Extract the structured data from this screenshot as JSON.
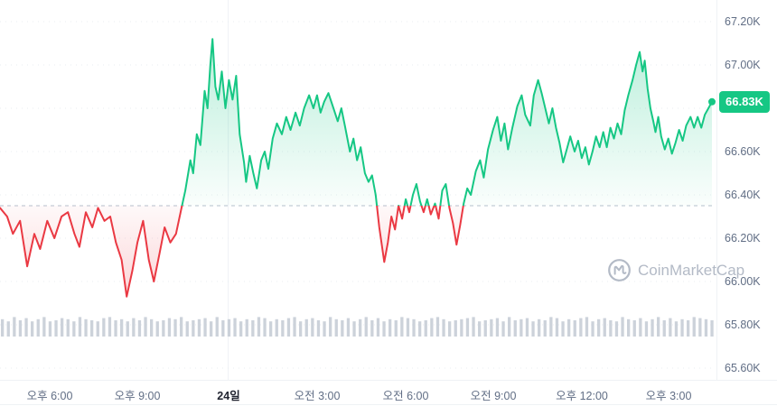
{
  "watermark": {
    "text": "CoinMarketCap"
  },
  "chart_data": {
    "type": "line",
    "current": 66.83,
    "current_label": "66.83K",
    "baseline": 66.35,
    "ylim": [
      65.55,
      67.3
    ],
    "grid": true,
    "yticks": [
      67.2,
      67.0,
      66.8,
      66.6,
      66.4,
      66.2,
      66.0,
      65.8,
      65.6
    ],
    "ytick_labels": [
      "67.20K",
      "67.00K",
      "66.80K",
      "66.60K",
      "66.40K",
      "66.20K",
      "66.00K",
      "65.80K",
      "65.60K"
    ],
    "xticks": [
      {
        "f": 0.07,
        "label": "오후 6:00",
        "bold": false
      },
      {
        "f": 0.192,
        "label": "오후 9:00",
        "bold": false
      },
      {
        "f": 0.319,
        "label": "24일",
        "bold": true
      },
      {
        "f": 0.443,
        "label": "오전 3:00",
        "bold": false
      },
      {
        "f": 0.567,
        "label": "오전 6:00",
        "bold": false
      },
      {
        "f": 0.69,
        "label": "오전 9:00",
        "bold": false
      },
      {
        "f": 0.813,
        "label": "오후 12:00",
        "bold": false
      },
      {
        "f": 0.934,
        "label": "오후 3:00",
        "bold": false
      }
    ],
    "colors": {
      "up": "#16c784",
      "down": "#ea3943",
      "badge": "#16c784",
      "axis_text": "#616e85",
      "grid": "#eef1f6",
      "baseline_line": "#b6c0cd",
      "volume": "#ccd2da"
    },
    "points": [
      [
        0,
        66.34
      ],
      [
        0.01,
        66.3
      ],
      [
        0.018,
        66.22
      ],
      [
        0.028,
        66.28
      ],
      [
        0.038,
        66.07
      ],
      [
        0.048,
        66.22
      ],
      [
        0.056,
        66.15
      ],
      [
        0.066,
        66.28
      ],
      [
        0.076,
        66.2
      ],
      [
        0.086,
        66.3
      ],
      [
        0.095,
        66.32
      ],
      [
        0.104,
        66.22
      ],
      [
        0.111,
        66.16
      ],
      [
        0.12,
        66.32
      ],
      [
        0.129,
        66.25
      ],
      [
        0.137,
        66.34
      ],
      [
        0.146,
        66.28
      ],
      [
        0.154,
        66.3
      ],
      [
        0.162,
        66.18
      ],
      [
        0.17,
        66.1
      ],
      [
        0.177,
        65.93
      ],
      [
        0.185,
        66.05
      ],
      [
        0.192,
        66.18
      ],
      [
        0.2,
        66.28
      ],
      [
        0.208,
        66.1
      ],
      [
        0.215,
        66.0
      ],
      [
        0.223,
        66.13
      ],
      [
        0.23,
        66.25
      ],
      [
        0.238,
        66.18
      ],
      [
        0.246,
        66.22
      ],
      [
        0.253,
        66.33
      ],
      [
        0.259,
        66.42
      ],
      [
        0.266,
        66.56
      ],
      [
        0.27,
        66.5
      ],
      [
        0.275,
        66.68
      ],
      [
        0.28,
        66.63
      ],
      [
        0.286,
        66.88
      ],
      [
        0.29,
        66.8
      ],
      [
        0.294,
        67.0
      ],
      [
        0.297,
        67.12
      ],
      [
        0.301,
        66.9
      ],
      [
        0.305,
        66.84
      ],
      [
        0.31,
        66.97
      ],
      [
        0.315,
        66.8
      ],
      [
        0.32,
        66.93
      ],
      [
        0.325,
        66.84
      ],
      [
        0.33,
        66.95
      ],
      [
        0.335,
        66.68
      ],
      [
        0.341,
        66.55
      ],
      [
        0.344,
        66.46
      ],
      [
        0.349,
        66.58
      ],
      [
        0.354,
        66.5
      ],
      [
        0.359,
        66.43
      ],
      [
        0.365,
        66.56
      ],
      [
        0.37,
        66.6
      ],
      [
        0.375,
        66.52
      ],
      [
        0.381,
        66.66
      ],
      [
        0.387,
        66.73
      ],
      [
        0.394,
        66.68
      ],
      [
        0.4,
        66.76
      ],
      [
        0.406,
        66.7
      ],
      [
        0.413,
        66.78
      ],
      [
        0.419,
        66.72
      ],
      [
        0.425,
        66.8
      ],
      [
        0.432,
        66.86
      ],
      [
        0.438,
        66.8
      ],
      [
        0.443,
        66.86
      ],
      [
        0.448,
        66.78
      ],
      [
        0.453,
        66.83
      ],
      [
        0.459,
        66.87
      ],
      [
        0.466,
        66.8
      ],
      [
        0.472,
        66.74
      ],
      [
        0.477,
        66.8
      ],
      [
        0.482,
        66.72
      ],
      [
        0.489,
        66.6
      ],
      [
        0.494,
        66.66
      ],
      [
        0.499,
        66.56
      ],
      [
        0.504,
        66.62
      ],
      [
        0.51,
        66.5
      ],
      [
        0.515,
        66.46
      ],
      [
        0.52,
        66.49
      ],
      [
        0.525,
        66.4
      ],
      [
        0.53,
        66.25
      ],
      [
        0.537,
        66.09
      ],
      [
        0.542,
        66.18
      ],
      [
        0.547,
        66.3
      ],
      [
        0.552,
        66.24
      ],
      [
        0.557,
        66.35
      ],
      [
        0.562,
        66.29
      ],
      [
        0.567,
        66.38
      ],
      [
        0.572,
        66.32
      ],
      [
        0.577,
        66.4
      ],
      [
        0.582,
        66.45
      ],
      [
        0.587,
        66.37
      ],
      [
        0.592,
        66.32
      ],
      [
        0.597,
        66.38
      ],
      [
        0.602,
        66.31
      ],
      [
        0.608,
        66.36
      ],
      [
        0.613,
        66.29
      ],
      [
        0.618,
        66.42
      ],
      [
        0.623,
        66.45
      ],
      [
        0.628,
        66.34
      ],
      [
        0.633,
        66.27
      ],
      [
        0.638,
        66.17
      ],
      [
        0.643,
        66.26
      ],
      [
        0.648,
        66.36
      ],
      [
        0.653,
        66.43
      ],
      [
        0.658,
        66.4
      ],
      [
        0.665,
        66.51
      ],
      [
        0.671,
        66.56
      ],
      [
        0.676,
        66.48
      ],
      [
        0.682,
        66.61
      ],
      [
        0.689,
        66.7
      ],
      [
        0.695,
        66.76
      ],
      [
        0.7,
        66.65
      ],
      [
        0.705,
        66.73
      ],
      [
        0.71,
        66.61
      ],
      [
        0.716,
        66.71
      ],
      [
        0.723,
        66.81
      ],
      [
        0.729,
        66.86
      ],
      [
        0.734,
        66.77
      ],
      [
        0.741,
        66.72
      ],
      [
        0.746,
        66.86
      ],
      [
        0.752,
        66.93
      ],
      [
        0.757,
        66.87
      ],
      [
        0.762,
        66.8
      ],
      [
        0.767,
        66.73
      ],
      [
        0.772,
        66.8
      ],
      [
        0.777,
        66.71
      ],
      [
        0.782,
        66.64
      ],
      [
        0.787,
        66.55
      ],
      [
        0.792,
        66.61
      ],
      [
        0.797,
        66.67
      ],
      [
        0.803,
        66.6
      ],
      [
        0.808,
        66.65
      ],
      [
        0.813,
        66.57
      ],
      [
        0.818,
        66.62
      ],
      [
        0.823,
        66.54
      ],
      [
        0.828,
        66.6
      ],
      [
        0.833,
        66.67
      ],
      [
        0.838,
        66.62
      ],
      [
        0.843,
        66.69
      ],
      [
        0.848,
        66.62
      ],
      [
        0.853,
        66.71
      ],
      [
        0.858,
        66.66
      ],
      [
        0.863,
        66.73
      ],
      [
        0.868,
        66.68
      ],
      [
        0.873,
        66.79
      ],
      [
        0.878,
        66.86
      ],
      [
        0.884,
        66.93
      ],
      [
        0.889,
        67.0
      ],
      [
        0.894,
        67.06
      ],
      [
        0.898,
        66.97
      ],
      [
        0.901,
        67.02
      ],
      [
        0.905,
        66.89
      ],
      [
        0.909,
        66.8
      ],
      [
        0.913,
        66.74
      ],
      [
        0.916,
        66.69
      ],
      [
        0.92,
        66.76
      ],
      [
        0.924,
        66.67
      ],
      [
        0.929,
        66.61
      ],
      [
        0.934,
        66.66
      ],
      [
        0.939,
        66.59
      ],
      [
        0.944,
        66.64
      ],
      [
        0.949,
        66.7
      ],
      [
        0.954,
        66.65
      ],
      [
        0.959,
        66.72
      ],
      [
        0.965,
        66.76
      ],
      [
        0.97,
        66.71
      ],
      [
        0.975,
        66.76
      ],
      [
        0.98,
        66.71
      ],
      [
        0.985,
        66.77
      ],
      [
        0.99,
        66.8
      ],
      [
        0.995,
        66.83
      ]
    ],
    "volume": [
      0.8,
      0.7,
      0.9,
      0.75,
      0.85,
      0.7,
      0.8,
      0.9,
      0.7,
      0.75,
      0.85,
      0.8,
      0.7,
      0.9,
      0.8,
      0.75,
      0.7,
      0.85,
      0.9,
      0.75,
      0.8,
      0.7,
      0.85,
      0.75,
      0.9,
      0.8,
      0.7,
      0.75,
      0.85,
      0.8,
      0.9,
      0.7,
      0.75,
      0.8,
      0.85,
      0.7,
      0.9,
      0.75,
      0.8,
      0.85,
      0.7,
      0.8,
      0.75,
      0.9,
      0.85,
      0.7,
      0.8,
      0.75,
      0.85,
      0.9,
      0.7,
      0.8,
      0.85,
      0.75,
      0.7,
      0.9,
      0.8,
      0.75,
      0.85,
      0.7,
      0.8,
      0.9,
      0.75,
      0.85,
      0.7,
      0.8,
      0.75,
      0.9,
      0.85,
      0.8,
      0.7,
      0.75,
      0.85,
      0.9,
      0.8,
      0.7,
      0.75,
      0.8,
      0.85,
      0.9,
      0.7,
      0.75,
      0.8,
      0.85,
      0.7,
      0.9,
      0.75,
      0.8,
      0.85,
      0.7,
      0.8,
      0.75,
      0.9,
      0.85,
      0.7,
      0.8,
      0.75,
      0.85,
      0.9,
      0.7,
      0.8,
      0.85,
      0.75,
      0.7,
      0.9,
      0.8,
      0.75,
      0.85,
      0.7,
      0.8,
      0.9,
      0.75,
      0.85,
      0.7,
      0.8,
      0.75,
      0.9,
      0.85,
      0.8,
      0.75
    ]
  }
}
